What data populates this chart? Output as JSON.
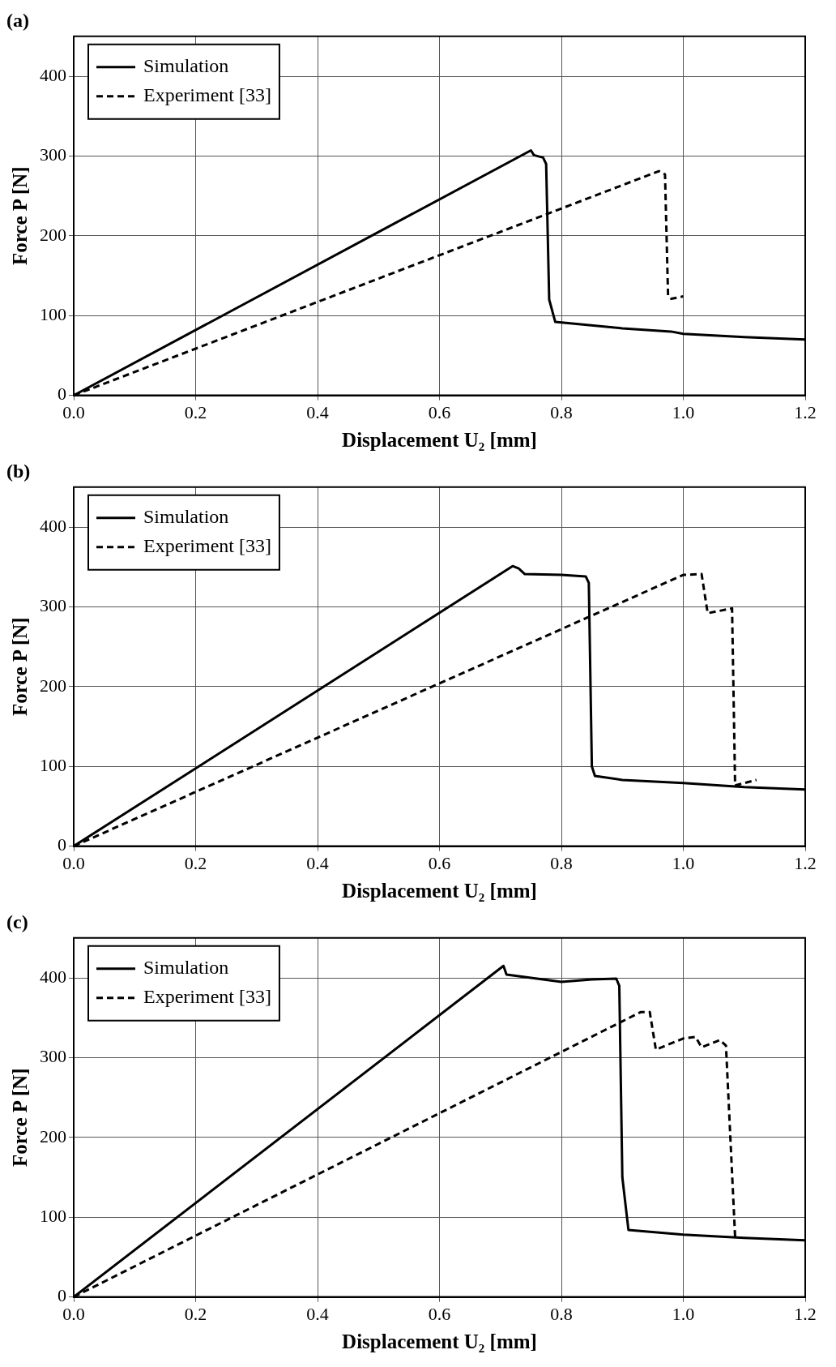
{
  "chart_data": [
    {
      "type": "line",
      "title": "(a)",
      "xlabel": "Displacement U₂ [mm]",
      "ylabel": "Force P [N]",
      "xlim": [
        0,
        1.2
      ],
      "ylim": [
        0,
        450
      ],
      "xticks": [
        {
          "value": 0,
          "label": "0.0"
        },
        {
          "value": 0.2,
          "label": "0.2"
        },
        {
          "value": 0.4,
          "label": "0.4"
        },
        {
          "value": 0.6,
          "label": "0.6"
        },
        {
          "value": 0.8,
          "label": "0.8"
        },
        {
          "value": 1.0,
          "label": "1.0"
        },
        {
          "value": 1.2,
          "label": "1.2"
        }
      ],
      "yticks": [
        0,
        100,
        200,
        300,
        400
      ],
      "grid": true,
      "legend": "top left",
      "marker": "none",
      "series": [
        {
          "name": "Simulation",
          "color": "#000000",
          "line_style": "solid",
          "x": [
            0,
            0.75,
            0.755,
            0.77,
            0.775,
            0.78,
            0.79,
            0.9,
            0.98,
            1.0,
            1.1,
            1.2
          ],
          "values": [
            0,
            307,
            301,
            298,
            290,
            120,
            92,
            84,
            80,
            77,
            73,
            70
          ]
        },
        {
          "name": "Experiment [33]",
          "color": "#000000",
          "line_style": "dashed",
          "x": [
            0,
            0.96,
            0.97,
            0.975,
            0.98,
            1.0
          ],
          "values": [
            0,
            281,
            277,
            125,
            121,
            124
          ]
        }
      ]
    },
    {
      "type": "line",
      "title": "(b)",
      "xlabel": "Displacement U₂ [mm]",
      "ylabel": "Force P [N]",
      "xlim": [
        0,
        1.2
      ],
      "ylim": [
        0,
        450
      ],
      "xticks": [
        {
          "value": 0,
          "label": "0.0"
        },
        {
          "value": 0.2,
          "label": "0.2"
        },
        {
          "value": 0.4,
          "label": "0.4"
        },
        {
          "value": 0.6,
          "label": "0.6"
        },
        {
          "value": 0.8,
          "label": "0.8"
        },
        {
          "value": 1.0,
          "label": "1.0"
        },
        {
          "value": 1.2,
          "label": "1.2"
        }
      ],
      "yticks": [
        0,
        100,
        200,
        300,
        400
      ],
      "grid": true,
      "legend": "top left",
      "marker": "none",
      "series": [
        {
          "name": "Simulation",
          "color": "#000000",
          "line_style": "solid",
          "x": [
            0,
            0.72,
            0.73,
            0.74,
            0.8,
            0.84,
            0.845,
            0.85,
            0.855,
            0.9,
            1.0,
            1.1,
            1.2
          ],
          "values": [
            0,
            351,
            348,
            341,
            340,
            338,
            330,
            100,
            88,
            83,
            79,
            74,
            71
          ]
        },
        {
          "name": "Experiment [33]",
          "color": "#000000",
          "line_style": "dashed",
          "x": [
            0,
            1.0,
            1.03,
            1.04,
            1.08,
            1.085,
            1.12
          ],
          "values": [
            0,
            340,
            341,
            292,
            298,
            76,
            83
          ]
        }
      ]
    },
    {
      "type": "line",
      "title": "(c)",
      "xlabel": "Displacement U₂ [mm]",
      "ylabel": "Force P [N]",
      "xlim": [
        0,
        1.2
      ],
      "ylim": [
        0,
        450
      ],
      "xticks": [
        {
          "value": 0,
          "label": "0.0"
        },
        {
          "value": 0.2,
          "label": "0.2"
        },
        {
          "value": 0.4,
          "label": "0.4"
        },
        {
          "value": 0.6,
          "label": "0.6"
        },
        {
          "value": 0.8,
          "label": "0.8"
        },
        {
          "value": 1.0,
          "label": "1.0"
        },
        {
          "value": 1.2,
          "label": "1.2"
        }
      ],
      "yticks": [
        0,
        100,
        200,
        300,
        400
      ],
      "grid": true,
      "legend": "top left",
      "marker": "none",
      "series": [
        {
          "name": "Simulation",
          "color": "#000000",
          "line_style": "solid",
          "x": [
            0,
            0.705,
            0.71,
            0.8,
            0.85,
            0.89,
            0.895,
            0.9,
            0.91,
            1.0,
            1.1,
            1.2
          ],
          "values": [
            0,
            415,
            404,
            395,
            398,
            399,
            390,
            150,
            84,
            78,
            74,
            71
          ]
        },
        {
          "name": "Experiment [33]",
          "color": "#000000",
          "line_style": "dashed",
          "x": [
            0,
            0.93,
            0.945,
            0.955,
            1.0,
            1.02,
            1.03,
            1.06,
            1.07,
            1.085
          ],
          "values": [
            0,
            357,
            357,
            310,
            324,
            326,
            313,
            322,
            315,
            75
          ]
        }
      ]
    }
  ]
}
